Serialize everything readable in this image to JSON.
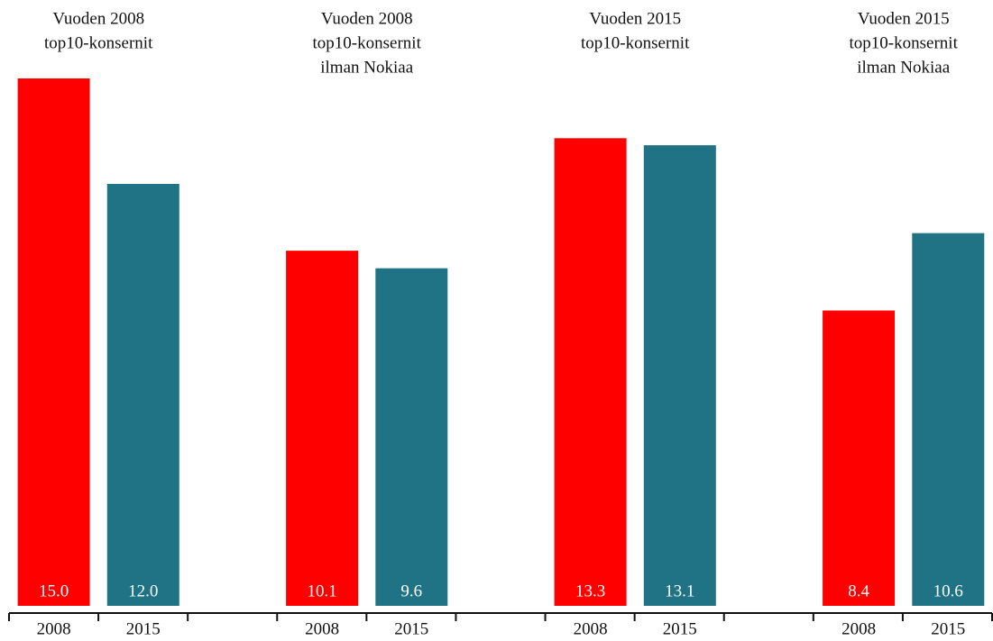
{
  "chart_data": {
    "type": "bar",
    "groups": [
      {
        "title": [
          "Vuoden 2008",
          "top10-konsernit"
        ],
        "categories": [
          "2008",
          "2015"
        ],
        "values": [
          15.0,
          12.0
        ],
        "value_labels": [
          "15.0",
          "12.0"
        ]
      },
      {
        "title": [
          "Vuoden 2008",
          "top10-konsernit",
          "ilman Nokiaa"
        ],
        "categories": [
          "2008",
          "2015"
        ],
        "values": [
          10.1,
          9.6
        ],
        "value_labels": [
          "10.1",
          "9.6"
        ]
      },
      {
        "title": [
          "Vuoden 2015",
          "top10-konsernit"
        ],
        "categories": [
          "2008",
          "2015"
        ],
        "values": [
          13.3,
          13.1
        ],
        "value_labels": [
          "13.3",
          "13.1"
        ]
      },
      {
        "title": [
          "Vuoden 2015",
          "top10-konsernit",
          "ilman Nokiaa"
        ],
        "categories": [
          "2008",
          "2015"
        ],
        "values": [
          8.4,
          10.6
        ],
        "value_labels": [
          "8.4",
          "10.6"
        ]
      }
    ],
    "colors": [
      "#ff0000",
      "#207385"
    ]
  }
}
